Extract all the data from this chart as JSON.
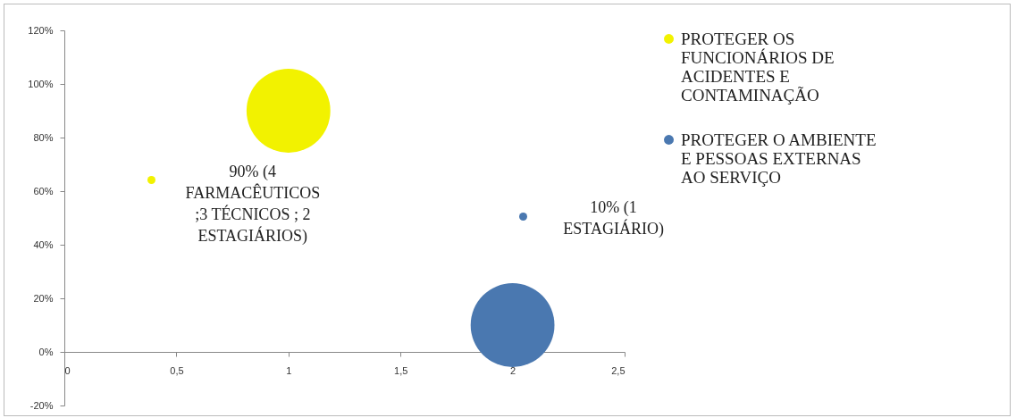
{
  "chart_data": {
    "type": "bubble",
    "xlim": [
      0,
      2.5
    ],
    "ylim": [
      -20,
      120
    ],
    "xticks": [
      0,
      {
        "value": 0.5,
        "label": "0,5"
      },
      1,
      {
        "value": 1.5,
        "label": "1,5"
      },
      2,
      {
        "value": 2.5,
        "label": "2,5"
      }
    ],
    "yticks": [
      {
        "value": -20,
        "label": "-20%"
      },
      {
        "value": 0,
        "label": "0%"
      },
      {
        "value": 20,
        "label": "20%"
      },
      {
        "value": 40,
        "label": "40%"
      },
      {
        "value": 60,
        "label": "60%"
      },
      {
        "value": 80,
        "label": "80%"
      },
      {
        "value": 100,
        "label": "100%"
      },
      {
        "value": 120,
        "label": "120%"
      }
    ],
    "series": [
      {
        "name": "PROTEGER OS FUNCIONÁRIOS DE ACIDENTES E CONTAMINAÇÃO",
        "color": "#f2f200",
        "x": [
          1
        ],
        "values": [
          90
        ],
        "sizes": [
          1
        ]
      },
      {
        "name": "PROTEGER O AMBIENTE E PESSOAS EXTERNAS AO SERVIÇO",
        "color": "#4a78b0",
        "x": [
          2
        ],
        "values": [
          10
        ],
        "sizes": [
          1
        ]
      }
    ],
    "annotations": [
      "90% (4 FARMACÊUTICOS ;3 TÉCNICOS ; 2 ESTAGIÁRIOS)",
      "10% (1 ESTAGIÁRIO)"
    ],
    "legend": "right",
    "grid": false
  }
}
